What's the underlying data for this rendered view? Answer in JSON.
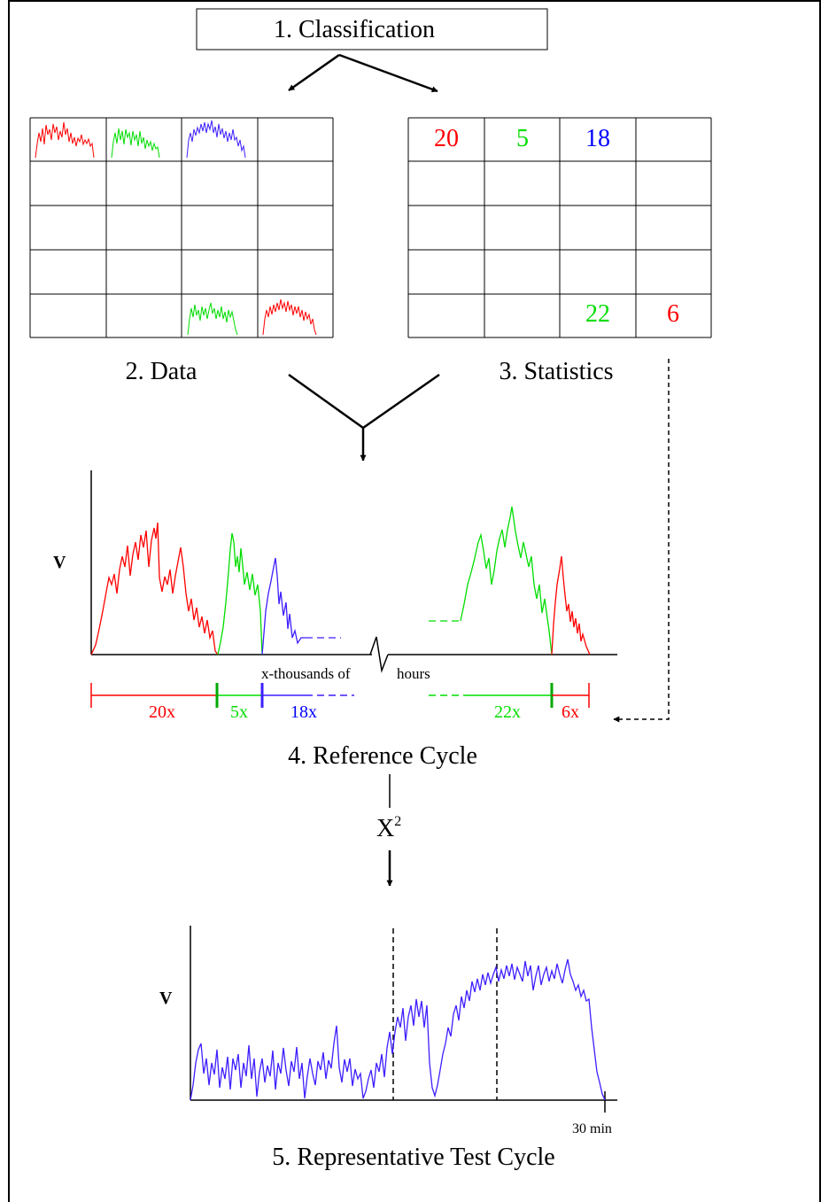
{
  "steps": {
    "classification": "1. Classification",
    "data": "2. Data",
    "statistics": "3. Statistics",
    "reference_cycle": "4. Reference Cycle",
    "test_cycle": "5. Representative Test Cycle"
  },
  "colors": {
    "red": "#ff0000",
    "green": "#00dd00",
    "blue": "#0000ff",
    "purple": "#3d1fff",
    "black": "#000000"
  },
  "stats_cells": [
    {
      "value": "20",
      "color": "red"
    },
    {
      "value": "5",
      "color": "green"
    },
    {
      "value": "18",
      "color": "blue"
    },
    {
      "value": "22",
      "color": "green"
    },
    {
      "value": "6",
      "color": "red"
    }
  ],
  "reference_chart": {
    "y_axis_label": "V",
    "x_axis_label_left": "x-thousands of",
    "x_axis_label_right": "hours",
    "segments": [
      {
        "label": "20x",
        "color": "red"
      },
      {
        "label": "5x",
        "color": "green"
      },
      {
        "label": "18x",
        "color": "blue"
      },
      {
        "label": "22x",
        "color": "green"
      },
      {
        "label": "6x",
        "color": "red"
      }
    ]
  },
  "chi_square": {
    "symbol": "X",
    "superscript": "2"
  },
  "test_chart": {
    "y_axis_label": "V",
    "x_end_label": "30 min"
  }
}
